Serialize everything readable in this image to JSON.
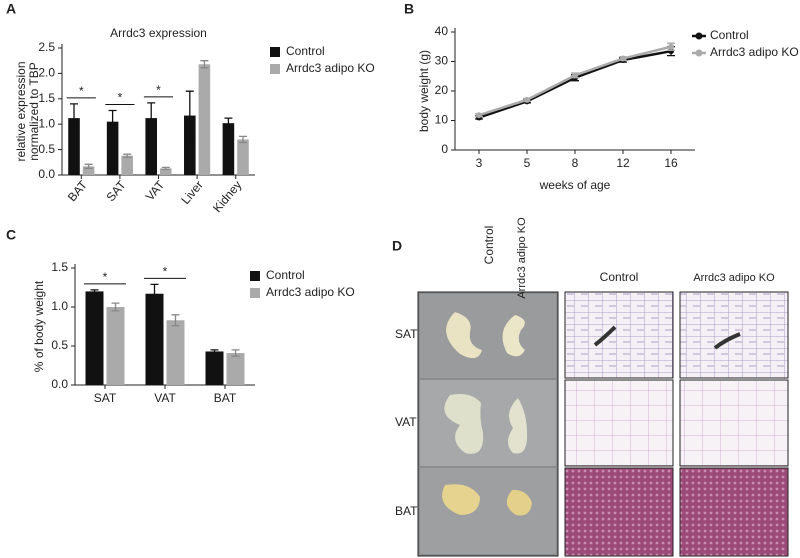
{
  "chart_data": [
    {
      "type": "bar",
      "panel_label": "A",
      "title": "Arrdc3 expression",
      "y_label": [
        "relative expression",
        "normalized to TBP"
      ],
      "categories": [
        "BAT",
        "SAT",
        "VAT",
        "Liver",
        "Kidney"
      ],
      "series": [
        {
          "name": "Control",
          "color": "#111111",
          "values": [
            1.12,
            1.05,
            1.12,
            1.17,
            1.02
          ],
          "errors": [
            0.28,
            0.22,
            0.3,
            0.48,
            0.1
          ]
        },
        {
          "name": "Arrdc3 adipo KO",
          "color": "#aaaaaa",
          "values": [
            0.17,
            0.38,
            0.13,
            2.18,
            0.7
          ],
          "errors": [
            0.04,
            0.03,
            0.02,
            0.07,
            0.06
          ]
        }
      ],
      "significance": [
        "*",
        "*",
        "*",
        null,
        null
      ],
      "ylim": [
        0,
        2.5
      ],
      "yticks": [
        {
          "value": 0,
          "label": "0.0"
        },
        0.5,
        {
          "value": 1,
          "label": "1.0"
        },
        1.5,
        {
          "value": 2,
          "label": "2.0"
        },
        2.5
      ]
    },
    {
      "type": "line",
      "panel_label": "B",
      "y_label": [
        "body weight (g)"
      ],
      "x_label": "weeks of age",
      "categories": [
        3,
        5,
        8,
        12,
        16
      ],
      "series": [
        {
          "name": "Control",
          "color": "#111111",
          "values": [
            11,
            16.5,
            24.5,
            30.5,
            33.5
          ],
          "errors": [
            0.5,
            0.5,
            1,
            0.7,
            1.5
          ]
        },
        {
          "name": "Arrdc3 adipo KO",
          "color": "#aaaaaa",
          "values": [
            11.8,
            17,
            25.3,
            31,
            35
          ],
          "errors": [
            0.5,
            0.5,
            0.8,
            0.6,
            1.2
          ]
        }
      ],
      "ylim": [
        0,
        40
      ],
      "yticks": [
        0,
        10,
        20,
        30,
        40
      ]
    },
    {
      "type": "bar",
      "panel_label": "C",
      "y_label": [
        "% of body weight"
      ],
      "categories": [
        "SAT",
        "VAT",
        "BAT"
      ],
      "series": [
        {
          "name": "Control",
          "color": "#111111",
          "values": [
            1.2,
            1.17,
            0.43
          ],
          "errors": [
            0.02,
            0.12,
            0.02
          ]
        },
        {
          "name": "Arrdc3 adipo KO",
          "color": "#aaaaaa",
          "values": [
            1.0,
            0.83,
            0.41
          ],
          "errors": [
            0.05,
            0.07,
            0.04
          ]
        }
      ],
      "significance": [
        "*",
        "*",
        null
      ],
      "ylim": [
        0,
        1.5
      ],
      "yticks": [
        {
          "value": 0,
          "label": "0.0"
        },
        0.5,
        {
          "value": 1,
          "label": "1.0"
        },
        1.5
      ]
    }
  ],
  "panel_d": {
    "panel_label": "D",
    "photo_columns": [
      "Control",
      "Arrdc3 adipo KO"
    ],
    "histology_columns": [
      "Control",
      "Arrdc3 adipo KO"
    ],
    "rows": [
      "SAT",
      "VAT",
      "BAT"
    ]
  }
}
